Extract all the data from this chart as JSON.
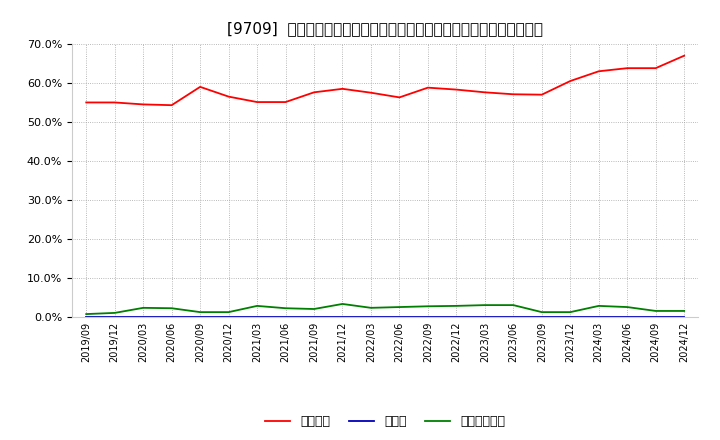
{
  "title": "[9709]  自己資本、のれん、繰延税金資産の総資産に対する比率の推移",
  "x_labels": [
    "2019/09",
    "2019/12",
    "2020/03",
    "2020/06",
    "2020/09",
    "2020/12",
    "2021/03",
    "2021/06",
    "2021/09",
    "2021/12",
    "2022/03",
    "2022/06",
    "2022/09",
    "2022/12",
    "2023/03",
    "2023/06",
    "2023/09",
    "2023/12",
    "2024/03",
    "2024/06",
    "2024/09",
    "2024/12"
  ],
  "equity": [
    0.55,
    0.55,
    0.545,
    0.543,
    0.59,
    0.565,
    0.551,
    0.551,
    0.576,
    0.585,
    0.575,
    0.563,
    0.588,
    0.583,
    0.576,
    0.571,
    0.57,
    0.605,
    0.63,
    0.638,
    0.638,
    0.67
  ],
  "noren": [
    0.0,
    0.0,
    0.0,
    0.0,
    0.0,
    0.0,
    0.0,
    0.0,
    0.0,
    0.0,
    0.0,
    0.0,
    0.0,
    0.0,
    0.0,
    0.0,
    0.0,
    0.0,
    0.0,
    0.0,
    0.0,
    0.0
  ],
  "deferred_tax": [
    0.007,
    0.01,
    0.023,
    0.022,
    0.012,
    0.012,
    0.028,
    0.022,
    0.02,
    0.033,
    0.023,
    0.025,
    0.027,
    0.028,
    0.03,
    0.03,
    0.012,
    0.012,
    0.028,
    0.025,
    0.015,
    0.015
  ],
  "equity_color": "#ff0000",
  "noren_color": "#0000bb",
  "deferred_tax_color": "#008000",
  "background_color": "#ffffff",
  "grid_color": "#999999",
  "ylim": [
    0.0,
    0.7
  ],
  "yticks": [
    0.0,
    0.1,
    0.2,
    0.3,
    0.4,
    0.5,
    0.6,
    0.7
  ],
  "legend_equity": "自己資本",
  "legend_noren": "のれん",
  "legend_deferred": "繰延税金資産"
}
